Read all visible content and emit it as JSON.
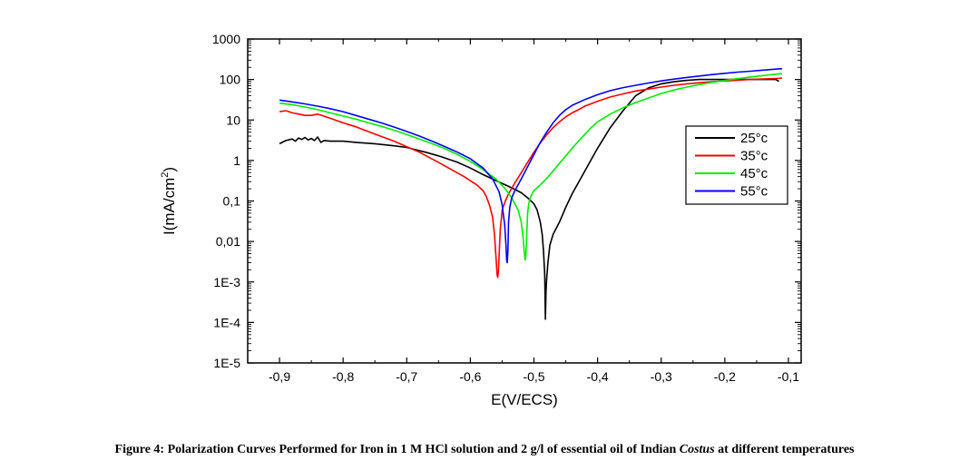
{
  "chart_data": {
    "type": "line",
    "xlabel": "E(V/ECS)",
    "ylabel": "I(mA/cm",
    "ylabel_sup": "2",
    "ylabel_end": ")",
    "ylog": true,
    "xlim": [
      -0.95,
      -0.08
    ],
    "ylim": [
      1e-05,
      1000
    ],
    "xticks": [
      -0.9,
      -0.8,
      -0.7,
      -0.6,
      -0.5,
      -0.4,
      -0.3,
      -0.2,
      -0.1
    ],
    "xtick_labels": [
      "-0,9",
      "-0,8",
      "-0,7",
      "-0,6",
      "-0,5",
      "-0,4",
      "-0,3",
      "-0,2",
      "-0,1"
    ],
    "yticks": [
      1e-05,
      0.0001,
      0.001,
      0.01,
      0.1,
      1,
      10,
      100,
      1000
    ],
    "ytick_labels": [
      "1E-5",
      "1E-4",
      "1E-3",
      "0,01",
      "0,1",
      "1",
      "10",
      "100",
      "1000"
    ],
    "legend_position": "right",
    "series": [
      {
        "name": "25°c",
        "color": "#000000",
        "x": [
          -0.9,
          -0.89,
          -0.88,
          -0.875,
          -0.87,
          -0.865,
          -0.86,
          -0.855,
          -0.85,
          -0.845,
          -0.84,
          -0.835,
          -0.83,
          -0.82,
          -0.8,
          -0.78,
          -0.75,
          -0.72,
          -0.7,
          -0.67,
          -0.65,
          -0.62,
          -0.6,
          -0.58,
          -0.56,
          -0.54,
          -0.52,
          -0.51,
          -0.5,
          -0.495,
          -0.49,
          -0.487,
          -0.485,
          -0.483,
          -0.482,
          -0.481,
          -0.48,
          -0.478,
          -0.475,
          -0.47,
          -0.46,
          -0.45,
          -0.44,
          -0.42,
          -0.4,
          -0.38,
          -0.36,
          -0.34,
          -0.32,
          -0.3,
          -0.28,
          -0.26,
          -0.24,
          -0.22,
          -0.2,
          -0.18,
          -0.16,
          -0.14,
          -0.12,
          -0.115
        ],
        "y": [
          2.6,
          3.1,
          3.4,
          3.0,
          3.6,
          3.3,
          3.7,
          3.2,
          3.5,
          3.1,
          3.8,
          2.8,
          3.1,
          3.0,
          3.0,
          2.8,
          2.6,
          2.3,
          2.1,
          1.6,
          1.3,
          0.9,
          0.65,
          0.45,
          0.32,
          0.23,
          0.16,
          0.12,
          0.085,
          0.06,
          0.03,
          0.015,
          0.006,
          0.0015,
          0.00012,
          0.0006,
          0.0012,
          0.003,
          0.008,
          0.015,
          0.03,
          0.07,
          0.15,
          0.55,
          2.0,
          6.5,
          17,
          40,
          62,
          78,
          88,
          95,
          100,
          100,
          100,
          100,
          100,
          100,
          100,
          90
        ]
      },
      {
        "name": "35°c",
        "color": "#ff0000",
        "x": [
          -0.9,
          -0.89,
          -0.885,
          -0.88,
          -0.87,
          -0.86,
          -0.85,
          -0.84,
          -0.82,
          -0.8,
          -0.78,
          -0.75,
          -0.72,
          -0.7,
          -0.68,
          -0.65,
          -0.63,
          -0.61,
          -0.59,
          -0.58,
          -0.575,
          -0.57,
          -0.565,
          -0.562,
          -0.56,
          -0.558,
          -0.557,
          -0.556,
          -0.555,
          -0.553,
          -0.55,
          -0.545,
          -0.54,
          -0.53,
          -0.52,
          -0.51,
          -0.5,
          -0.49,
          -0.48,
          -0.47,
          -0.46,
          -0.45,
          -0.44,
          -0.43,
          -0.42,
          -0.4,
          -0.38,
          -0.36,
          -0.34,
          -0.32,
          -0.3,
          -0.28,
          -0.26,
          -0.24,
          -0.22,
          -0.2,
          -0.18,
          -0.16,
          -0.14,
          -0.12,
          -0.11
        ],
        "y": [
          16,
          17,
          16,
          15,
          14,
          13,
          13,
          14,
          11,
          8.5,
          6.8,
          4.5,
          3.0,
          2.2,
          1.6,
          0.9,
          0.6,
          0.4,
          0.25,
          0.18,
          0.13,
          0.08,
          0.04,
          0.015,
          0.005,
          0.0015,
          0.0013,
          0.0018,
          0.004,
          0.02,
          0.06,
          0.1,
          0.15,
          0.28,
          0.5,
          0.9,
          1.6,
          2.7,
          4.3,
          6.5,
          9.0,
          12,
          15,
          18,
          22,
          29,
          37,
          44,
          52,
          58,
          65,
          72,
          78,
          83,
          88,
          92,
          96,
          100,
          103,
          106,
          108
        ]
      },
      {
        "name": "45°c",
        "color": "#00ee00",
        "x": [
          -0.9,
          -0.88,
          -0.86,
          -0.84,
          -0.82,
          -0.8,
          -0.78,
          -0.76,
          -0.74,
          -0.72,
          -0.7,
          -0.68,
          -0.66,
          -0.64,
          -0.62,
          -0.6,
          -0.58,
          -0.56,
          -0.545,
          -0.535,
          -0.525,
          -0.52,
          -0.517,
          -0.515,
          -0.514,
          -0.513,
          -0.512,
          -0.511,
          -0.51,
          -0.508,
          -0.505,
          -0.5,
          -0.49,
          -0.48,
          -0.47,
          -0.46,
          -0.45,
          -0.44,
          -0.43,
          -0.42,
          -0.41,
          -0.4,
          -0.38,
          -0.36,
          -0.34,
          -0.32,
          -0.3,
          -0.28,
          -0.26,
          -0.24,
          -0.22,
          -0.2,
          -0.18,
          -0.16,
          -0.14,
          -0.12,
          -0.11
        ],
        "y": [
          26,
          24,
          21,
          18,
          15,
          12.5,
          10.5,
          8.5,
          7,
          5.6,
          4.4,
          3.4,
          2.6,
          1.95,
          1.4,
          0.95,
          0.6,
          0.35,
          0.2,
          0.12,
          0.06,
          0.03,
          0.012,
          0.005,
          0.0035,
          0.004,
          0.008,
          0.02,
          0.05,
          0.09,
          0.13,
          0.18,
          0.25,
          0.36,
          0.55,
          0.85,
          1.3,
          2.0,
          3.0,
          4.4,
          6.5,
          9,
          14,
          20,
          27,
          35,
          45,
          55,
          65,
          75,
          85,
          95,
          105,
          115,
          125,
          135,
          140
        ]
      },
      {
        "name": "55°c",
        "color": "#0000ff",
        "x": [
          -0.9,
          -0.88,
          -0.86,
          -0.84,
          -0.82,
          -0.8,
          -0.78,
          -0.76,
          -0.74,
          -0.72,
          -0.7,
          -0.68,
          -0.66,
          -0.64,
          -0.62,
          -0.6,
          -0.58,
          -0.565,
          -0.555,
          -0.55,
          -0.546,
          -0.544,
          -0.543,
          -0.542,
          -0.541,
          -0.54,
          -0.538,
          -0.535,
          -0.53,
          -0.52,
          -0.51,
          -0.5,
          -0.49,
          -0.48,
          -0.47,
          -0.46,
          -0.45,
          -0.44,
          -0.42,
          -0.4,
          -0.38,
          -0.36,
          -0.34,
          -0.32,
          -0.3,
          -0.28,
          -0.26,
          -0.24,
          -0.22,
          -0.2,
          -0.18,
          -0.16,
          -0.14,
          -0.12,
          -0.11
        ],
        "y": [
          31,
          28,
          25,
          22,
          19,
          16,
          13,
          10.5,
          8.5,
          6.7,
          5.2,
          4.0,
          3.0,
          2.2,
          1.6,
          1.1,
          0.65,
          0.35,
          0.17,
          0.08,
          0.025,
          0.008,
          0.0035,
          0.003,
          0.006,
          0.03,
          0.07,
          0.12,
          0.18,
          0.35,
          0.7,
          1.4,
          2.8,
          5.0,
          8.5,
          13,
          18,
          23,
          32,
          42,
          53,
          63,
          72,
          82,
          92,
          102,
          112,
          122,
          132,
          142,
          152,
          160,
          170,
          180,
          185
        ]
      }
    ]
  },
  "caption": {
    "prefix": "Figure 4: Polarization Curves Performed for Iron in 1 M HCl solution and 2 g/l of essential oil of Indian ",
    "italic": "Costus",
    "suffix": " at different temperatures"
  }
}
